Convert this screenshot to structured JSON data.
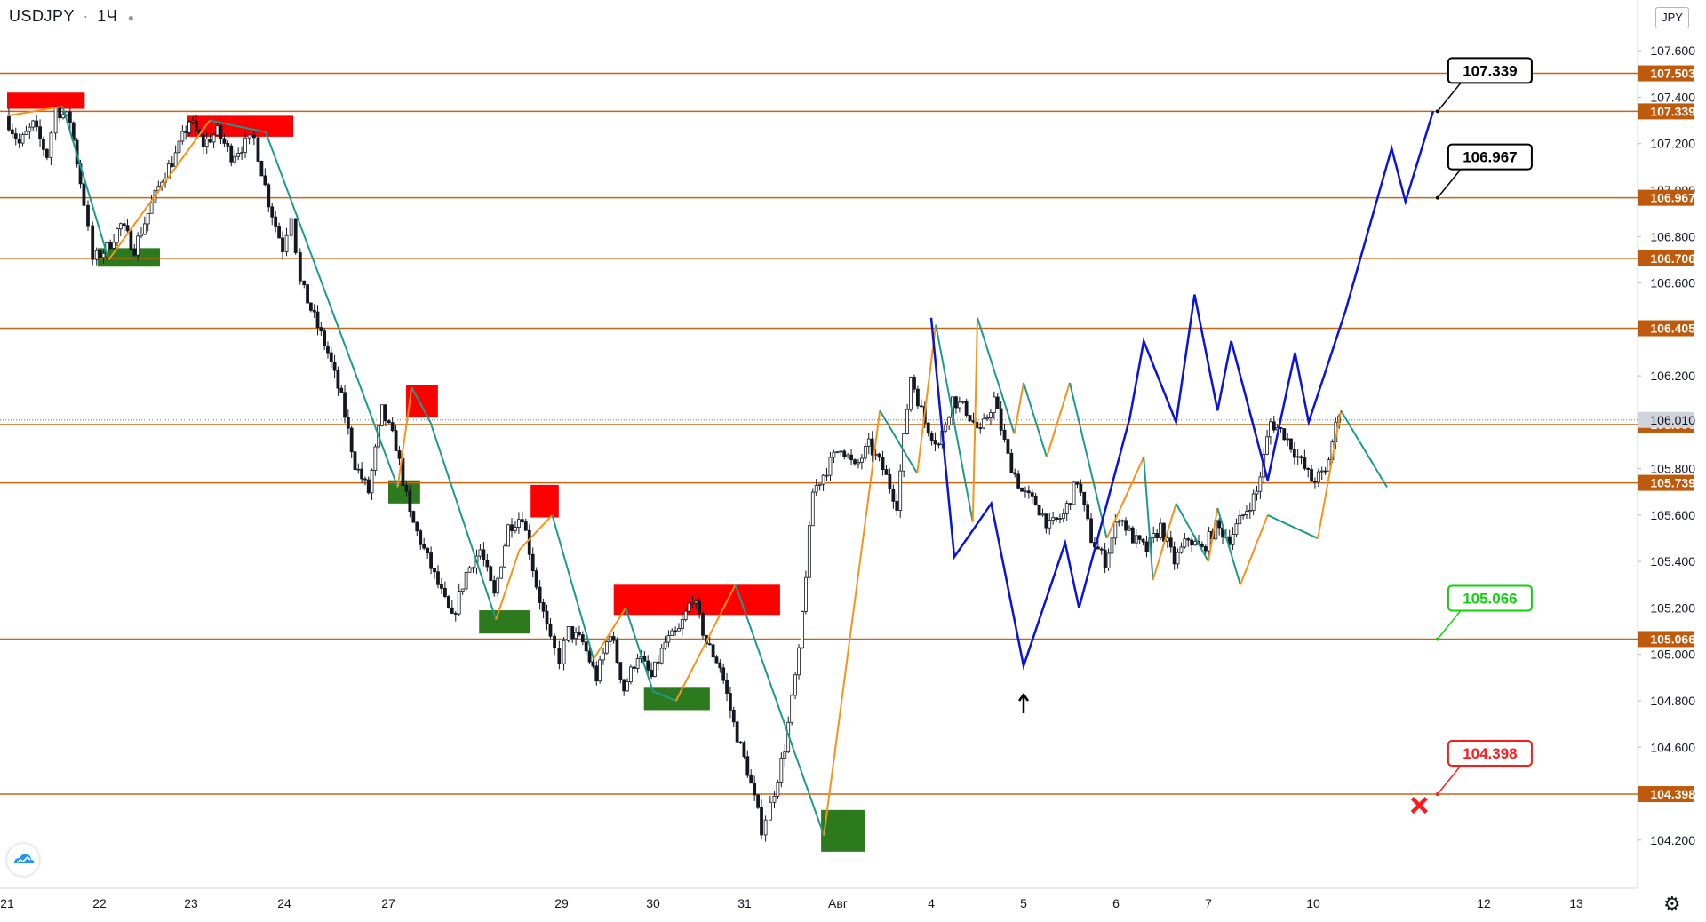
{
  "header": {
    "symbol": "USDJPY",
    "timeframe": "1Ч"
  },
  "currency": "JPY",
  "colors": {
    "level_line": "#c8660f",
    "level_label_bg": "#bf5a0c",
    "last_price_bg": "#ffffff",
    "resistance_box": "#ff0000",
    "support_box": "#2d7a1e",
    "zigzag_up": "#f7931a",
    "zigzag_down": "#1d9a8f",
    "forecast": "#0a14d9",
    "callout_black": "#000000",
    "callout_green": "#12d010",
    "callout_red": "#ff1a1a",
    "candle": "#131722"
  },
  "icons": {
    "logo": "tradingview-cloud-icon",
    "settings": "gear-icon",
    "target": "cross-icon",
    "arrow": "arrow-up-icon"
  },
  "chart_data": {
    "type": "candlestick",
    "title": "USDJPY · 1Ч",
    "y_range": [
      104.05,
      107.75
    ],
    "y_ticks": [
      "107.600",
      "107.400",
      "107.200",
      "107.000",
      "106.800",
      "106.600",
      "106.400",
      "106.200",
      "106.000",
      "105.800",
      "105.600",
      "105.400",
      "105.200",
      "105.000",
      "104.800",
      "104.600",
      "104.400",
      "104.200"
    ],
    "x_ticks": [
      {
        "label": "21",
        "t": 0
      },
      {
        "label": "22",
        "t": 1
      },
      {
        "label": "23",
        "t": 2
      },
      {
        "label": "24",
        "t": 3
      },
      {
        "label": "27",
        "t": 4.15
      },
      {
        "label": "29",
        "t": 6
      },
      {
        "label": "30",
        "t": 7
      },
      {
        "label": "31",
        "t": 8
      },
      {
        "label": "Авг",
        "t": 9
      },
      {
        "label": "4",
        "t": 10
      },
      {
        "label": "5",
        "t": 11
      },
      {
        "label": "6",
        "t": 12
      },
      {
        "label": "7",
        "t": 13
      },
      {
        "label": "10",
        "t": 14.15
      },
      {
        "label": "12",
        "t": 16
      },
      {
        "label": "13",
        "t": 17
      }
    ],
    "levels": [
      "107.503",
      "107.339",
      "106.967",
      "106.706",
      "106.405",
      "105.990",
      "105.739",
      "105.066",
      "104.398"
    ],
    "last_price": "106.010",
    "price_series": [
      [
        0,
        107.32
      ],
      [
        0.15,
        107.2
      ],
      [
        0.3,
        107.28
      ],
      [
        0.45,
        107.15
      ],
      [
        0.55,
        107.35
      ],
      [
        0.7,
        107.3
      ],
      [
        0.85,
        106.95
      ],
      [
        0.95,
        106.7
      ],
      [
        1.1,
        106.75
      ],
      [
        1.25,
        106.85
      ],
      [
        1.4,
        106.75
      ],
      [
        1.55,
        106.9
      ],
      [
        1.7,
        107.05
      ],
      [
        1.85,
        107.15
      ],
      [
        2.0,
        107.3
      ],
      [
        2.15,
        107.2
      ],
      [
        2.3,
        107.25
      ],
      [
        2.45,
        107.15
      ],
      [
        2.6,
        107.2
      ],
      [
        2.7,
        107.22
      ],
      [
        2.85,
        106.95
      ],
      [
        3.0,
        106.75
      ],
      [
        3.1,
        106.9
      ],
      [
        3.2,
        106.6
      ],
      [
        3.35,
        106.45
      ],
      [
        3.5,
        106.3
      ],
      [
        3.65,
        106.1
      ],
      [
        3.8,
        105.82
      ],
      [
        3.95,
        105.7
      ],
      [
        4.1,
        106.05
      ],
      [
        4.25,
        105.9
      ],
      [
        4.4,
        105.6
      ],
      [
        4.55,
        105.45
      ],
      [
        4.7,
        105.3
      ],
      [
        4.85,
        105.15
      ],
      [
        5.0,
        105.35
      ],
      [
        5.15,
        105.45
      ],
      [
        5.3,
        105.25
      ],
      [
        5.45,
        105.55
      ],
      [
        5.6,
        105.6
      ],
      [
        5.75,
        105.3
      ],
      [
        5.9,
        105.05
      ],
      [
        6.0,
        104.98
      ],
      [
        6.1,
        105.1
      ],
      [
        6.25,
        105.05
      ],
      [
        6.4,
        104.9
      ],
      [
        6.55,
        105.1
      ],
      [
        6.7,
        104.85
      ],
      [
        6.85,
        105.0
      ],
      [
        7.0,
        104.9
      ],
      [
        7.15,
        105.05
      ],
      [
        7.3,
        105.1
      ],
      [
        7.45,
        105.25
      ],
      [
        7.6,
        105.05
      ],
      [
        7.75,
        104.95
      ],
      [
        7.9,
        104.7
      ],
      [
        8.05,
        104.5
      ],
      [
        8.2,
        104.25
      ],
      [
        8.3,
        104.35
      ],
      [
        8.45,
        104.6
      ],
      [
        8.6,
        105.0
      ],
      [
        8.75,
        105.7
      ],
      [
        8.9,
        105.8
      ],
      [
        9.05,
        105.9
      ],
      [
        9.2,
        105.8
      ],
      [
        9.35,
        105.9
      ],
      [
        9.5,
        105.8
      ],
      [
        9.65,
        105.65
      ],
      [
        9.8,
        106.2
      ],
      [
        9.95,
        106.0
      ],
      [
        10.1,
        105.9
      ],
      [
        10.25,
        106.1
      ],
      [
        10.4,
        106.05
      ],
      [
        10.55,
        105.95
      ],
      [
        10.7,
        106.1
      ],
      [
        10.85,
        105.85
      ],
      [
        11.0,
        105.7
      ],
      [
        11.15,
        105.65
      ],
      [
        11.3,
        105.55
      ],
      [
        11.45,
        105.6
      ],
      [
        11.6,
        105.75
      ],
      [
        11.75,
        105.5
      ],
      [
        11.9,
        105.4
      ],
      [
        12.05,
        105.6
      ],
      [
        12.2,
        105.5
      ],
      [
        12.35,
        105.45
      ],
      [
        12.5,
        105.55
      ],
      [
        12.65,
        105.4
      ],
      [
        12.8,
        105.5
      ],
      [
        12.95,
        105.45
      ],
      [
        13.1,
        105.55
      ],
      [
        13.25,
        105.5
      ],
      [
        13.4,
        105.6
      ],
      [
        13.55,
        105.7
      ],
      [
        13.7,
        106.0
      ],
      [
        13.85,
        105.95
      ],
      [
        14.0,
        105.85
      ],
      [
        14.15,
        105.75
      ],
      [
        14.3,
        105.78
      ],
      [
        14.45,
        106.05
      ]
    ],
    "resistance_zones": [
      {
        "t0": 0,
        "t1": 0.84,
        "p0": 107.35,
        "p1": 107.42
      },
      {
        "t0": 1.96,
        "t1": 3.1,
        "p0": 107.23,
        "p1": 107.32
      },
      {
        "t0": 4.34,
        "t1": 4.68,
        "p0": 106.02,
        "p1": 106.16
      },
      {
        "t0": 5.67,
        "t1": 5.97,
        "p0": 105.59,
        "p1": 105.73
      },
      {
        "t0": 6.57,
        "t1": 8.38,
        "p0": 105.17,
        "p1": 105.3
      }
    ],
    "support_zones": [
      {
        "t0": 0.98,
        "t1": 1.66,
        "p0": 106.67,
        "p1": 106.75
      },
      {
        "t0": 4.15,
        "t1": 4.49,
        "p0": 105.65,
        "p1": 105.75
      },
      {
        "t0": 5.12,
        "t1": 5.66,
        "p0": 105.09,
        "p1": 105.19
      },
      {
        "t0": 6.9,
        "t1": 7.62,
        "p0": 104.76,
        "p1": 104.86
      },
      {
        "t0": 8.82,
        "t1": 9.29,
        "p0": 104.15,
        "p1": 104.33
      }
    ],
    "zigzag": [
      [
        0,
        107.32
      ],
      [
        0.6,
        107.36
      ],
      [
        1.1,
        106.7
      ],
      [
        2.2,
        107.3
      ],
      [
        2.8,
        107.25
      ],
      [
        3.3,
        106.72
      ],
      [
        4.25,
        105.72
      ],
      [
        4.4,
        106.15
      ],
      [
        4.6,
        106.0
      ],
      [
        5.3,
        105.15
      ],
      [
        5.55,
        105.45
      ],
      [
        5.9,
        105.6
      ],
      [
        6.35,
        104.98
      ],
      [
        6.7,
        105.2
      ],
      [
        7.0,
        104.84
      ],
      [
        7.25,
        104.8
      ],
      [
        7.9,
        105.3
      ],
      [
        8.85,
        104.22
      ],
      [
        9.45,
        106.05
      ],
      [
        9.85,
        105.78
      ],
      [
        10.05,
        106.42
      ],
      [
        10.45,
        105.57
      ],
      [
        10.5,
        106.45
      ],
      [
        10.9,
        105.95
      ],
      [
        11.0,
        106.17
      ],
      [
        11.25,
        105.85
      ],
      [
        11.5,
        106.17
      ],
      [
        11.9,
        105.5
      ],
      [
        12.3,
        105.85
      ],
      [
        12.4,
        105.32
      ],
      [
        12.65,
        105.65
      ],
      [
        13.0,
        105.4
      ],
      [
        13.1,
        105.63
      ],
      [
        13.35,
        105.3
      ],
      [
        13.65,
        105.6
      ],
      [
        14.2,
        105.5
      ],
      [
        14.45,
        106.05
      ],
      [
        14.95,
        105.72
      ]
    ],
    "forecast_path": [
      [
        10.0,
        106.45
      ],
      [
        10.25,
        105.42
      ],
      [
        10.65,
        105.65
      ],
      [
        11.0,
        104.95
      ],
      [
        11.45,
        105.48
      ],
      [
        11.6,
        105.2
      ],
      [
        12.15,
        106.02
      ],
      [
        12.3,
        106.35
      ],
      [
        12.65,
        106.0
      ],
      [
        12.85,
        106.55
      ],
      [
        13.1,
        106.05
      ],
      [
        13.25,
        106.35
      ],
      [
        13.65,
        105.75
      ],
      [
        13.95,
        106.3
      ],
      [
        14.1,
        106.0
      ],
      [
        14.5,
        106.48
      ],
      [
        15.0,
        107.18
      ],
      [
        15.15,
        106.95
      ],
      [
        15.45,
        107.34
      ]
    ],
    "callouts": [
      {
        "text": "107.339",
        "t": 15.45,
        "p": 107.339,
        "color": "black"
      },
      {
        "text": "106.967",
        "t": 15.45,
        "p": 106.967,
        "color": "black"
      },
      {
        "text": "105.066",
        "t": 15.45,
        "p": 105.066,
        "color": "green"
      },
      {
        "text": "104.398",
        "t": 15.45,
        "p": 104.398,
        "color": "red"
      }
    ],
    "markers": [
      {
        "type": "arrow-up",
        "t": 11.0,
        "p": 104.8
      },
      {
        "type": "cross",
        "t": 15.3,
        "p": 104.35
      }
    ]
  }
}
